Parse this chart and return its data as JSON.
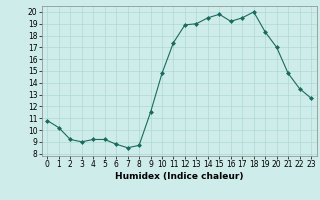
{
  "x": [
    0,
    1,
    2,
    3,
    4,
    5,
    6,
    7,
    8,
    9,
    10,
    11,
    12,
    13,
    14,
    15,
    16,
    17,
    18,
    19,
    20,
    21,
    22,
    23
  ],
  "y": [
    10.8,
    10.2,
    9.2,
    9.0,
    9.2,
    9.2,
    8.8,
    8.5,
    8.7,
    11.5,
    14.8,
    17.4,
    18.9,
    19.0,
    19.5,
    19.8,
    19.2,
    19.5,
    20.0,
    18.3,
    17.0,
    14.8,
    13.5,
    12.7
  ],
  "line_color": "#1a6b5e",
  "marker": "D",
  "marker_size": 2,
  "bg_color": "#ceecea",
  "grid_color": "#aed8d5",
  "xlabel": "Humidex (Indice chaleur)",
  "ylim": [
    7.8,
    20.5
  ],
  "xlim": [
    -0.5,
    23.5
  ],
  "yticks": [
    8,
    9,
    10,
    11,
    12,
    13,
    14,
    15,
    16,
    17,
    18,
    19,
    20
  ],
  "xticks": [
    0,
    1,
    2,
    3,
    4,
    5,
    6,
    7,
    8,
    9,
    10,
    11,
    12,
    13,
    14,
    15,
    16,
    17,
    18,
    19,
    20,
    21,
    22,
    23
  ],
  "label_fontsize": 6.5,
  "tick_fontsize": 5.5
}
